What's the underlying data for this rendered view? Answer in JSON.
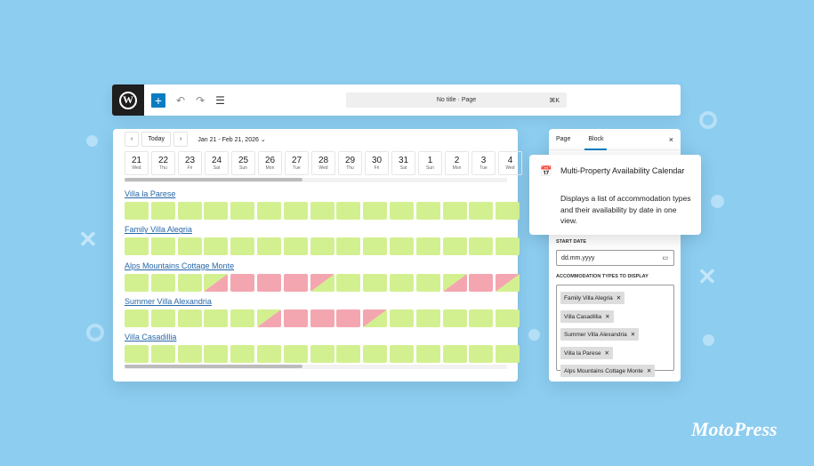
{
  "colors": {
    "background": "#8ccdf0",
    "available": "#d3f090",
    "booked": "#f4a6b0",
    "accent": "#0a7cc1",
    "link": "#2667a8"
  },
  "toolbar": {
    "logo_icon": "wordpress-icon",
    "add_label": "+",
    "document_title": "No title · Page",
    "shortcut": "⌘K"
  },
  "calendar": {
    "prev_label": "‹",
    "today_label": "Today",
    "next_label": "›",
    "range_label": "Jan 21 - Feb 21, 2026 ⌄",
    "days": [
      {
        "d": "21",
        "w": "Wed"
      },
      {
        "d": "22",
        "w": "Thu"
      },
      {
        "d": "23",
        "w": "Fri"
      },
      {
        "d": "24",
        "w": "Sat"
      },
      {
        "d": "25",
        "w": "Sun"
      },
      {
        "d": "26",
        "w": "Mon"
      },
      {
        "d": "27",
        "w": "Tue"
      },
      {
        "d": "28",
        "w": "Wed"
      },
      {
        "d": "29",
        "w": "Thu"
      },
      {
        "d": "30",
        "w": "Fri"
      },
      {
        "d": "31",
        "w": "Sat"
      },
      {
        "d": "1",
        "w": "Sun"
      },
      {
        "d": "2",
        "w": "Mon"
      },
      {
        "d": "3",
        "w": "Tue"
      },
      {
        "d": "4",
        "w": "Wed"
      }
    ],
    "properties": [
      {
        "name": "Villa la Parese",
        "cells": [
          "a",
          "a",
          "a",
          "a",
          "a",
          "a",
          "a",
          "a",
          "a",
          "a",
          "a",
          "a",
          "a",
          "a",
          "a"
        ]
      },
      {
        "name": "Family Villa Alegria",
        "cells": [
          "a",
          "a",
          "a",
          "a",
          "a",
          "a",
          "a",
          "a",
          "a",
          "a",
          "a",
          "a",
          "a",
          "a",
          "a"
        ]
      },
      {
        "name": "Alps Mountains Cottage Monte",
        "cells": [
          "a",
          "a",
          "a",
          "ci",
          "b",
          "b",
          "b",
          "co",
          "a",
          "a",
          "a",
          "a",
          "ci",
          "b",
          "co"
        ]
      },
      {
        "name": "Summer Villa Alexandria",
        "cells": [
          "a",
          "a",
          "a",
          "a",
          "a",
          "ci",
          "b",
          "b",
          "b",
          "co",
          "a",
          "a",
          "a",
          "a",
          "a"
        ]
      },
      {
        "name": "Villa Casadillia",
        "cells": [
          "a",
          "a",
          "a",
          "a",
          "a",
          "a",
          "a",
          "a",
          "a",
          "a",
          "a",
          "a",
          "a",
          "a",
          "a"
        ]
      }
    ]
  },
  "sidebar": {
    "tab_page": "Page",
    "tab_block": "Block",
    "close": "×",
    "start_date_label": "START DATE",
    "start_date_placeholder": "dd.mm.yyyy",
    "types_label": "ACCOMMODATION TYPES TO DISPLAY",
    "tokens": [
      "Family Villa Alegria",
      "Villa Casadillia",
      "Summer Villa Alexandria",
      "Villa la Parese",
      "Alps Mountains Cottage Monte"
    ]
  },
  "tooltip": {
    "icon": "calendar-icon",
    "title": "Multi-Property Availability Calendar",
    "description": "Displays a list of accommodation types and their availability by date in one view."
  },
  "brand": "MotoPress"
}
